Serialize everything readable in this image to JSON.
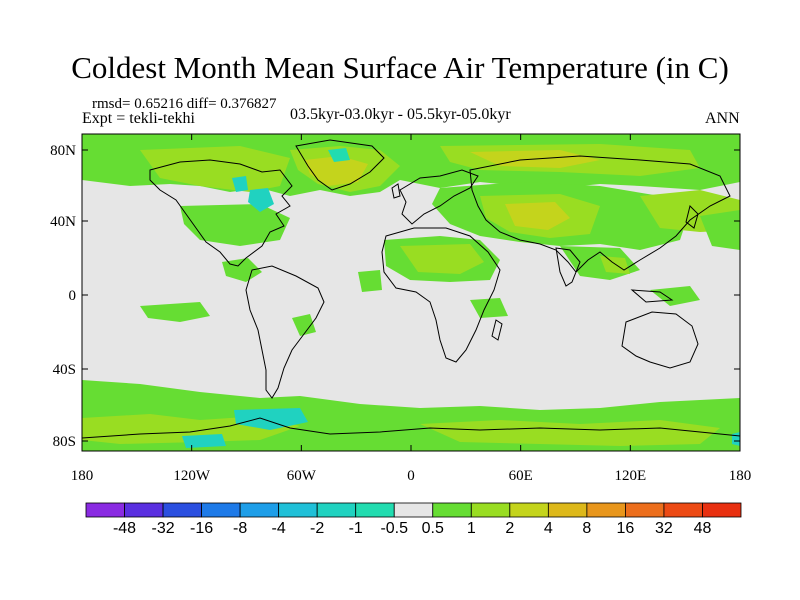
{
  "title": "Coldest Month Mean Surface Air Temperature (in C)",
  "stats": "rmsd= 0.65216 diff= 0.376827",
  "experiment": "Expt = tekli-tekhi",
  "period": "03.5kyr-03.0kyr - 05.5kyr-05.0kyr",
  "season": "ANN",
  "lat_ticks": [
    "80N",
    "40N",
    "0",
    "40S",
    "80S"
  ],
  "lon_ticks": [
    "180",
    "120W",
    "60W",
    "0",
    "60E",
    "120E",
    "180"
  ],
  "colorbar": {
    "labels": [
      "-48",
      "-32",
      "-16",
      "-8",
      "-4",
      "-2",
      "-1",
      "-0.5",
      "0.5",
      "1",
      "2",
      "4",
      "8",
      "16",
      "32",
      "48"
    ],
    "colors": [
      "#8a2be2",
      "#5a2fe0",
      "#2b4fe0",
      "#1e7ae8",
      "#1e9ee8",
      "#20c0d8",
      "#20d2c0",
      "#22dcb0",
      "#e6e6e6",
      "#66dd33",
      "#99dd22",
      "#c4d41c",
      "#ddb81a",
      "#e8961c",
      "#ec6e1c",
      "#ec4a14",
      "#e83010"
    ]
  },
  "map_colors": {
    "land_outline": "#000000",
    "neutral": "#e6e6e6",
    "light_green": "#66dd33",
    "yellow_green": "#99dd22",
    "olive": "#c4d41c",
    "gold": "#ddb81a",
    "cyan": "#20d2c0",
    "aqua": "#22dcb0"
  }
}
